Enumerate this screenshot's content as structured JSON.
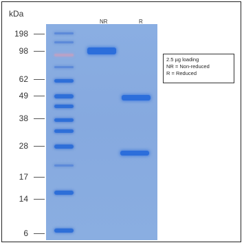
{
  "axis": {
    "unit": "kDa",
    "markers": [
      "198",
      "98",
      "62",
      "49",
      "38",
      "28",
      "17",
      "14",
      "6"
    ]
  },
  "lanes": {
    "nr": "NR",
    "r": "R"
  },
  "legend": {
    "line1": "2.5 µg loading",
    "line2": "NR = Non-reduced",
    "line3": "R = Reduced"
  },
  "colors": {
    "gel_background": "#88acE0",
    "band": "#2c6edb",
    "border": "#222222"
  }
}
